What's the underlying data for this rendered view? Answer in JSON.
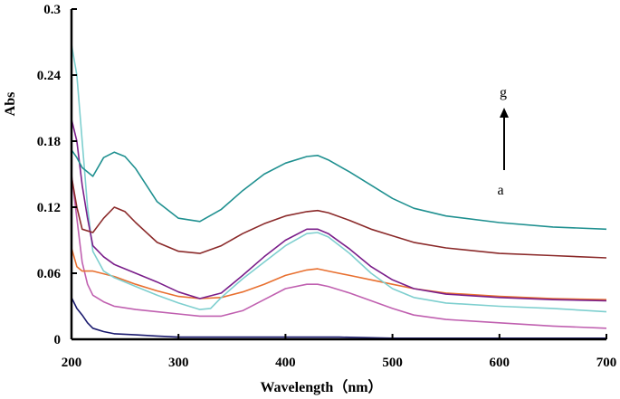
{
  "chart_data": {
    "type": "line",
    "title": "",
    "xlabel": "Wavelength（nm）",
    "ylabel": "Abs",
    "xlim": [
      200,
      700
    ],
    "ylim": [
      0,
      0.3
    ],
    "x_ticks": [
      200,
      300,
      400,
      500,
      600,
      700
    ],
    "x_tick_labels": [
      "200",
      "300",
      "400",
      "500",
      "600",
      "700"
    ],
    "y_ticks": [
      0,
      0.06,
      0.12,
      0.18,
      0.24,
      0.3
    ],
    "y_tick_labels": [
      "0",
      "0.06",
      "0.12",
      "0.18",
      "0.24",
      "0.3"
    ],
    "grid": false,
    "annotations": {
      "top_label": "g",
      "bottom_label": "a",
      "arrow": "up"
    },
    "series": [
      {
        "color": "#1a1a6e",
        "points": [
          [
            200,
            0.038
          ],
          [
            205,
            0.028
          ],
          [
            210,
            0.022
          ],
          [
            215,
            0.015
          ],
          [
            220,
            0.01
          ],
          [
            230,
            0.007
          ],
          [
            240,
            0.005
          ],
          [
            260,
            0.004
          ],
          [
            280,
            0.003
          ],
          [
            300,
            0.002
          ],
          [
            320,
            0.002
          ],
          [
            350,
            0.002
          ],
          [
            400,
            0.002
          ],
          [
            450,
            0.002
          ],
          [
            500,
            0.001
          ],
          [
            550,
            0.001
          ],
          [
            600,
            0.001
          ],
          [
            650,
            0.001
          ],
          [
            700,
            0.001
          ]
        ]
      },
      {
        "color": "#c060b0",
        "points": [
          [
            200,
            0.15
          ],
          [
            205,
            0.11
          ],
          [
            210,
            0.07
          ],
          [
            215,
            0.05
          ],
          [
            220,
            0.04
          ],
          [
            230,
            0.034
          ],
          [
            240,
            0.03
          ],
          [
            260,
            0.027
          ],
          [
            280,
            0.025
          ],
          [
            300,
            0.023
          ],
          [
            320,
            0.021
          ],
          [
            340,
            0.021
          ],
          [
            360,
            0.026
          ],
          [
            380,
            0.036
          ],
          [
            400,
            0.046
          ],
          [
            420,
            0.05
          ],
          [
            430,
            0.05
          ],
          [
            440,
            0.048
          ],
          [
            460,
            0.042
          ],
          [
            480,
            0.035
          ],
          [
            500,
            0.028
          ],
          [
            520,
            0.022
          ],
          [
            550,
            0.018
          ],
          [
            600,
            0.015
          ],
          [
            650,
            0.012
          ],
          [
            700,
            0.01
          ]
        ]
      },
      {
        "color": "#e87030",
        "points": [
          [
            200,
            0.083
          ],
          [
            205,
            0.066
          ],
          [
            210,
            0.062
          ],
          [
            220,
            0.062
          ],
          [
            240,
            0.057
          ],
          [
            260,
            0.05
          ],
          [
            280,
            0.044
          ],
          [
            300,
            0.039
          ],
          [
            320,
            0.037
          ],
          [
            340,
            0.038
          ],
          [
            360,
            0.043
          ],
          [
            380,
            0.05
          ],
          [
            400,
            0.058
          ],
          [
            420,
            0.063
          ],
          [
            430,
            0.064
          ],
          [
            440,
            0.062
          ],
          [
            460,
            0.058
          ],
          [
            480,
            0.054
          ],
          [
            500,
            0.05
          ],
          [
            520,
            0.046
          ],
          [
            550,
            0.042
          ],
          [
            600,
            0.039
          ],
          [
            650,
            0.037
          ],
          [
            700,
            0.036
          ]
        ]
      },
      {
        "color": "#7ecfcf",
        "points": [
          [
            200,
            0.268
          ],
          [
            205,
            0.24
          ],
          [
            210,
            0.18
          ],
          [
            215,
            0.12
          ],
          [
            220,
            0.08
          ],
          [
            230,
            0.062
          ],
          [
            240,
            0.056
          ],
          [
            260,
            0.048
          ],
          [
            280,
            0.04
          ],
          [
            300,
            0.033
          ],
          [
            320,
            0.027
          ],
          [
            330,
            0.028
          ],
          [
            340,
            0.038
          ],
          [
            360,
            0.055
          ],
          [
            380,
            0.07
          ],
          [
            400,
            0.085
          ],
          [
            420,
            0.096
          ],
          [
            430,
            0.097
          ],
          [
            440,
            0.093
          ],
          [
            460,
            0.078
          ],
          [
            480,
            0.06
          ],
          [
            500,
            0.046
          ],
          [
            520,
            0.038
          ],
          [
            550,
            0.033
          ],
          [
            600,
            0.03
          ],
          [
            650,
            0.028
          ],
          [
            700,
            0.025
          ]
        ]
      },
      {
        "color": "#7a1e8a",
        "points": [
          [
            200,
            0.2
          ],
          [
            205,
            0.18
          ],
          [
            210,
            0.14
          ],
          [
            215,
            0.11
          ],
          [
            220,
            0.085
          ],
          [
            230,
            0.075
          ],
          [
            240,
            0.068
          ],
          [
            260,
            0.06
          ],
          [
            280,
            0.052
          ],
          [
            300,
            0.043
          ],
          [
            320,
            0.037
          ],
          [
            340,
            0.042
          ],
          [
            360,
            0.058
          ],
          [
            380,
            0.075
          ],
          [
            400,
            0.09
          ],
          [
            420,
            0.1
          ],
          [
            430,
            0.1
          ],
          [
            440,
            0.096
          ],
          [
            460,
            0.082
          ],
          [
            480,
            0.066
          ],
          [
            500,
            0.054
          ],
          [
            520,
            0.046
          ],
          [
            550,
            0.041
          ],
          [
            600,
            0.038
          ],
          [
            650,
            0.036
          ],
          [
            700,
            0.035
          ]
        ]
      },
      {
        "color": "#8b2a2a",
        "points": [
          [
            200,
            0.148
          ],
          [
            205,
            0.12
          ],
          [
            210,
            0.1
          ],
          [
            220,
            0.097
          ],
          [
            230,
            0.11
          ],
          [
            240,
            0.12
          ],
          [
            250,
            0.116
          ],
          [
            260,
            0.106
          ],
          [
            280,
            0.088
          ],
          [
            300,
            0.08
          ],
          [
            320,
            0.078
          ],
          [
            340,
            0.085
          ],
          [
            360,
            0.096
          ],
          [
            380,
            0.105
          ],
          [
            400,
            0.112
          ],
          [
            420,
            0.116
          ],
          [
            430,
            0.117
          ],
          [
            440,
            0.115
          ],
          [
            460,
            0.108
          ],
          [
            480,
            0.1
          ],
          [
            500,
            0.094
          ],
          [
            520,
            0.088
          ],
          [
            550,
            0.083
          ],
          [
            600,
            0.078
          ],
          [
            650,
            0.076
          ],
          [
            700,
            0.074
          ]
        ]
      },
      {
        "color": "#1f9090",
        "points": [
          [
            200,
            0.172
          ],
          [
            205,
            0.165
          ],
          [
            210,
            0.156
          ],
          [
            220,
            0.148
          ],
          [
            230,
            0.165
          ],
          [
            240,
            0.17
          ],
          [
            250,
            0.166
          ],
          [
            260,
            0.155
          ],
          [
            280,
            0.125
          ],
          [
            300,
            0.11
          ],
          [
            320,
            0.107
          ],
          [
            340,
            0.118
          ],
          [
            360,
            0.135
          ],
          [
            380,
            0.15
          ],
          [
            400,
            0.16
          ],
          [
            420,
            0.166
          ],
          [
            430,
            0.167
          ],
          [
            440,
            0.163
          ],
          [
            460,
            0.152
          ],
          [
            480,
            0.14
          ],
          [
            500,
            0.128
          ],
          [
            520,
            0.119
          ],
          [
            550,
            0.112
          ],
          [
            600,
            0.106
          ],
          [
            650,
            0.102
          ],
          [
            700,
            0.1
          ]
        ]
      }
    ]
  }
}
